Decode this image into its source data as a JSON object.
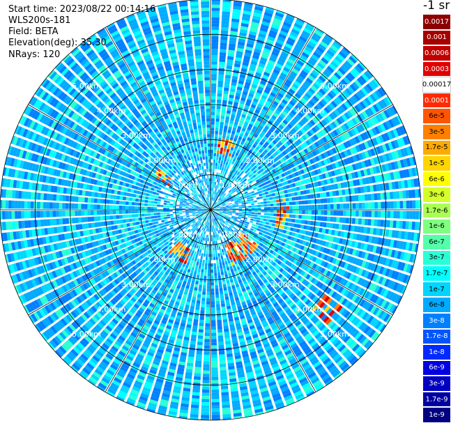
{
  "info": {
    "start_time": "Start time: 2023/08/22 00:14:16",
    "instrument": "WLS200s-181",
    "field": "Field: BETA",
    "elevation": "Elevation(deg): 35.30",
    "nrays": "NRays: 120"
  },
  "colorbar": {
    "unit": "-1 sr",
    "entries": [
      {
        "label": "0.0017",
        "color": "#8c0000"
      },
      {
        "label": "0.001",
        "color": "#a50000"
      },
      {
        "label": "0.0006",
        "color": "#c00000"
      },
      {
        "label": "0.0003",
        "color": "#e00000"
      },
      {
        "label": "0.00017",
        "color": "#ffffff"
      },
      {
        "label": "0.0001",
        "color": "#ff2a00"
      },
      {
        "label": "6e-5",
        "color": "#ff5500"
      },
      {
        "label": "3e-5",
        "color": "#ff8000"
      },
      {
        "label": "1.7e-5",
        "color": "#ffaa00"
      },
      {
        "label": "1e-5",
        "color": "#ffd500"
      },
      {
        "label": "6e-6",
        "color": "#ffff00"
      },
      {
        "label": "3e-6",
        "color": "#d5ff2a"
      },
      {
        "label": "1.7e-6",
        "color": "#aaff55"
      },
      {
        "label": "1e-6",
        "color": "#80ff80"
      },
      {
        "label": "6e-7",
        "color": "#55ffaa"
      },
      {
        "label": "3e-7",
        "color": "#2affd5"
      },
      {
        "label": "1.7e-7",
        "color": "#00ffff"
      },
      {
        "label": "1e-7",
        "color": "#00d5ff"
      },
      {
        "label": "6e-8",
        "color": "#00aaff"
      },
      {
        "label": "3e-8",
        "color": "#0080ff"
      },
      {
        "label": "1.7e-8",
        "color": "#0055ff"
      },
      {
        "label": "1e-8",
        "color": "#002aff"
      },
      {
        "label": "6e-9",
        "color": "#0000e0"
      },
      {
        "label": "3e-9",
        "color": "#0000c0"
      },
      {
        "label": "1.7e-9",
        "color": "#0000a0"
      },
      {
        "label": "1e-9",
        "color": "#000080"
      }
    ]
  },
  "chart_data": {
    "type": "heatmap",
    "projection": "polar",
    "field": "BETA",
    "n_rays": 120,
    "elevation_deg": 35.3,
    "range_rings_km": [
      1,
      2,
      3,
      4,
      5
    ],
    "range_ring_labels": [
      "1.00km",
      "2.00km",
      "3.00km",
      "4.00km",
      "5.00km"
    ],
    "max_range_km": 6.0,
    "grid_spoke_deg": 30,
    "background_level": "1e-7 to 1e-8 (mostly 1e-7 to 6e-8, speckled)",
    "high_return_regions": [
      {
        "azimuth_deg": [
          5,
          20
        ],
        "range_km": [
          1.6,
          2.0
        ],
        "level": "1e-5 to 3e-5"
      },
      {
        "azimuth_deg": [
          300,
          310
        ],
        "range_km": [
          1.3,
          1.8
        ],
        "level": "1e-5 to 3e-5"
      },
      {
        "azimuth_deg": [
          80,
          105
        ],
        "range_km": [
          1.8,
          2.2
        ],
        "level": "1e-5 to 6e-5"
      },
      {
        "azimuth_deg": [
          125,
          160
        ],
        "range_km": [
          1.0,
          1.7
        ],
        "level": "1e-5 to 6e-5"
      },
      {
        "azimuth_deg": [
          205,
          225
        ],
        "range_km": [
          1.2,
          1.7
        ],
        "level": "1e-5 to 6e-5"
      },
      {
        "azimuth_deg": [
          125,
          135
        ],
        "range_km": [
          4.0,
          4.6
        ],
        "level": "6e-6 to 1.7e-5"
      }
    ]
  }
}
